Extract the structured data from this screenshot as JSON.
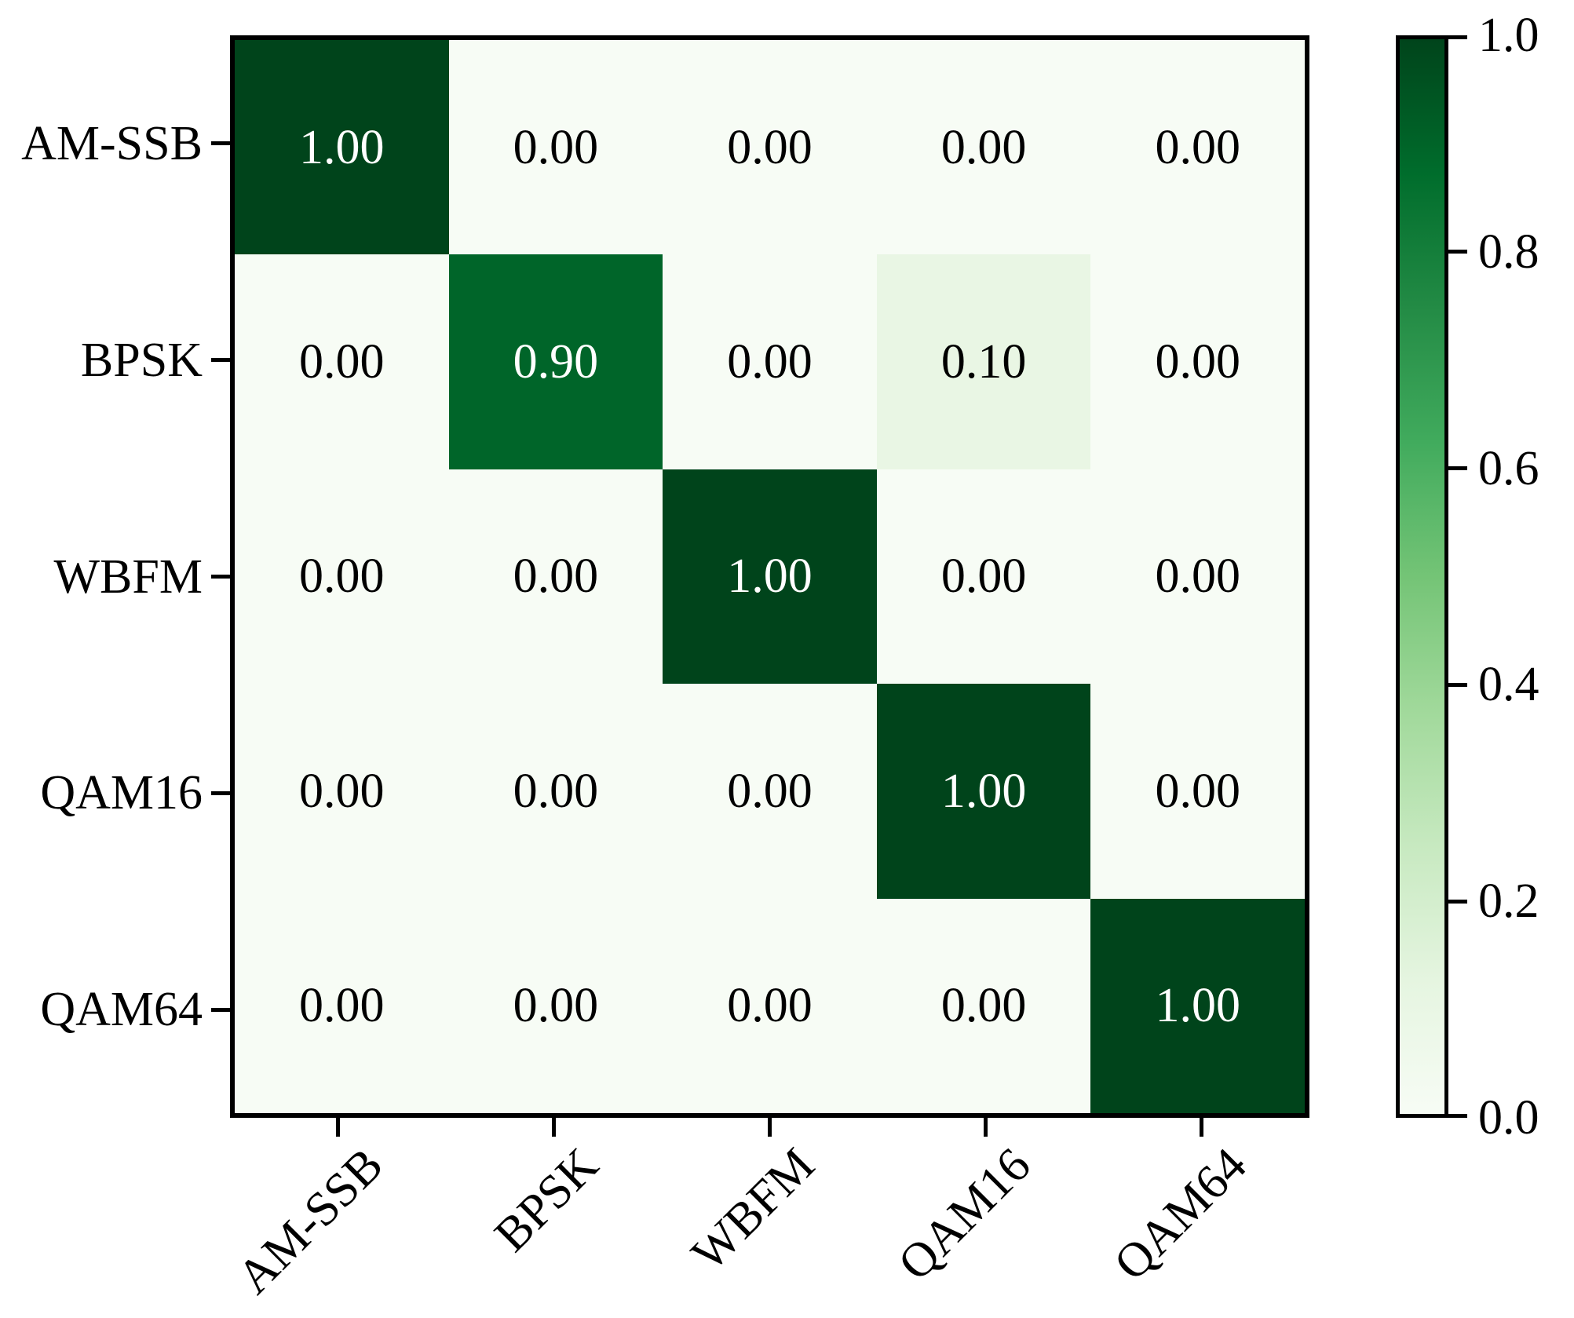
{
  "figure": {
    "background_color": "#ffffff",
    "axes_color": "#000000"
  },
  "chart_data": {
    "type": "heatmap",
    "title": "",
    "xlabel": "",
    "ylabel": "",
    "categories": [
      "AM-SSB",
      "BPSK",
      "WBFM",
      "QAM16",
      "QAM64"
    ],
    "row_labels": [
      "AM-SSB",
      "BPSK",
      "WBFM",
      "QAM16",
      "QAM64"
    ],
    "col_labels": [
      "AM-SSB",
      "BPSK",
      "WBFM",
      "QAM16",
      "QAM64"
    ],
    "matrix": [
      [
        1.0,
        0.0,
        0.0,
        0.0,
        0.0
      ],
      [
        0.0,
        0.9,
        0.0,
        0.1,
        0.0
      ],
      [
        0.0,
        0.0,
        1.0,
        0.0,
        0.0
      ],
      [
        0.0,
        0.0,
        0.0,
        1.0,
        0.0
      ],
      [
        0.0,
        0.0,
        0.0,
        0.0,
        1.0
      ]
    ],
    "value_decimals": 2,
    "colormap_name": "Greens",
    "colormap_stops": [
      "#f7fcf5",
      "#e5f5e0",
      "#c7e9c0",
      "#a1d99b",
      "#74c476",
      "#41ab5d",
      "#238b45",
      "#006d2c",
      "#00441b"
    ],
    "cell_text_color_dark_bg": "#ffffff",
    "cell_text_color_light_bg": "#000000",
    "x_tick_label_rotation_deg": 45,
    "grid": false,
    "colorbar": {
      "position": "right",
      "vmin": 0.0,
      "vmax": 1.0,
      "tick_labels": [
        "1.0",
        "0.8",
        "0.6",
        "0.4",
        "0.2",
        "0.0"
      ],
      "tick_values": [
        1.0,
        0.8,
        0.6,
        0.4,
        0.2,
        0.0
      ]
    }
  }
}
